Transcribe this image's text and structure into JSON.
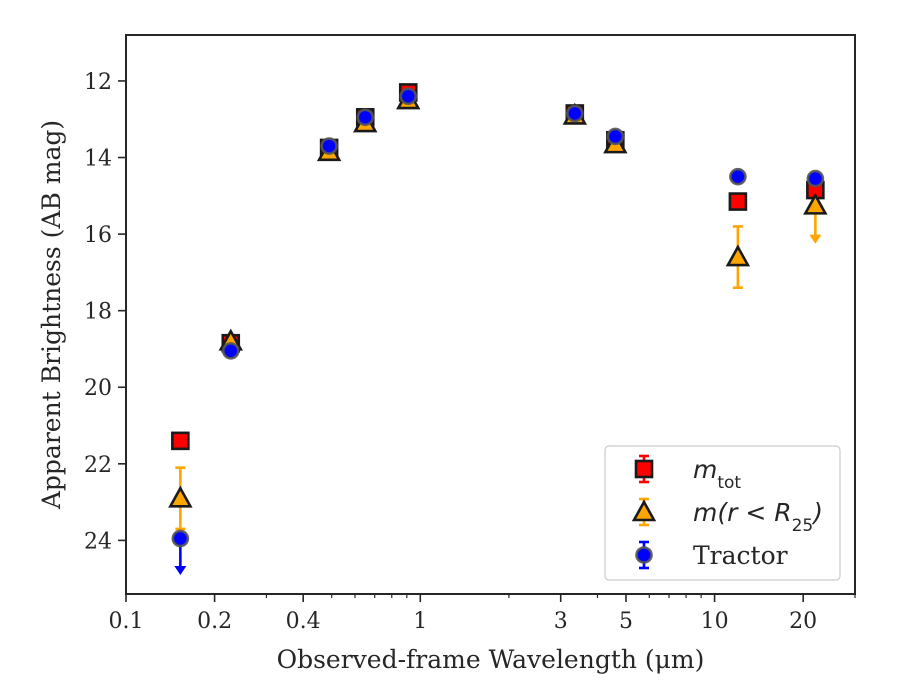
{
  "chart_data": {
    "type": "scatter",
    "title": "",
    "xlabel": "Observed-frame Wavelength (μm)",
    "ylabel": "Apparent Brightness (AB mag)",
    "xscale": "log",
    "xlim": [
      0.1,
      30
    ],
    "ylim": [
      25.4,
      10.8
    ],
    "y_inverted": true,
    "x_ticks": [
      0.1,
      0.2,
      0.4,
      1,
      3,
      5,
      10,
      20
    ],
    "x_tick_labels": [
      "0.1",
      "0.2",
      "0.4",
      "1",
      "3",
      "5",
      "10",
      "20"
    ],
    "y_ticks": [
      12,
      14,
      16,
      18,
      20,
      22,
      24
    ],
    "y_tick_labels": [
      "12",
      "14",
      "16",
      "18",
      "20",
      "22",
      "24"
    ],
    "grid": false,
    "legend_position": "lower-right",
    "legend": [
      {
        "label": "m",
        "sub": "tot"
      },
      {
        "label": "m(r < R",
        "sub": "25",
        "suffix": ")"
      },
      {
        "label": "Tractor"
      }
    ],
    "series": [
      {
        "name": "m_tot",
        "marker": "square",
        "color": "#ff0000",
        "x": [
          0.153,
          0.227,
          0.49,
          0.65,
          0.91,
          3.35,
          4.6,
          12.0,
          22.0
        ],
        "y": [
          21.4,
          18.85,
          13.75,
          12.95,
          12.3,
          12.85,
          13.55,
          15.15,
          14.85
        ],
        "yerr": [
          0,
          0,
          0,
          0,
          0,
          0,
          0,
          0,
          0.2
        ]
      },
      {
        "name": "m(r < R_25)",
        "marker": "triangle",
        "color": "#ffa500",
        "x": [
          0.153,
          0.227,
          0.49,
          0.65,
          0.91,
          3.35,
          4.6,
          12.0,
          22.0
        ],
        "y": [
          22.9,
          18.8,
          13.85,
          13.1,
          12.5,
          12.9,
          13.65,
          16.6,
          15.25
        ],
        "yerr": [
          0.8,
          0,
          0,
          0,
          0,
          0,
          0,
          0.8,
          0
        ],
        "upper_limit": [
          false,
          false,
          false,
          false,
          false,
          false,
          false,
          false,
          true
        ],
        "limit_to": [
          0,
          0,
          0,
          0,
          0,
          0,
          0,
          0,
          16.2
        ]
      },
      {
        "name": "Tractor",
        "marker": "circle",
        "color": "#0000ff",
        "x": [
          0.153,
          0.227,
          0.49,
          0.65,
          0.91,
          3.35,
          4.6,
          12.0,
          22.0
        ],
        "y": [
          23.95,
          19.05,
          13.7,
          12.95,
          12.4,
          12.85,
          13.45,
          14.5,
          14.55
        ],
        "yerr": [
          0,
          0,
          0,
          0,
          0,
          0,
          0,
          0,
          0
        ],
        "upper_limit": [
          true,
          false,
          false,
          false,
          false,
          false,
          false,
          false,
          false
        ],
        "limit_to": [
          24.85,
          0,
          0,
          0,
          0,
          0,
          0,
          0,
          0
        ]
      }
    ]
  }
}
